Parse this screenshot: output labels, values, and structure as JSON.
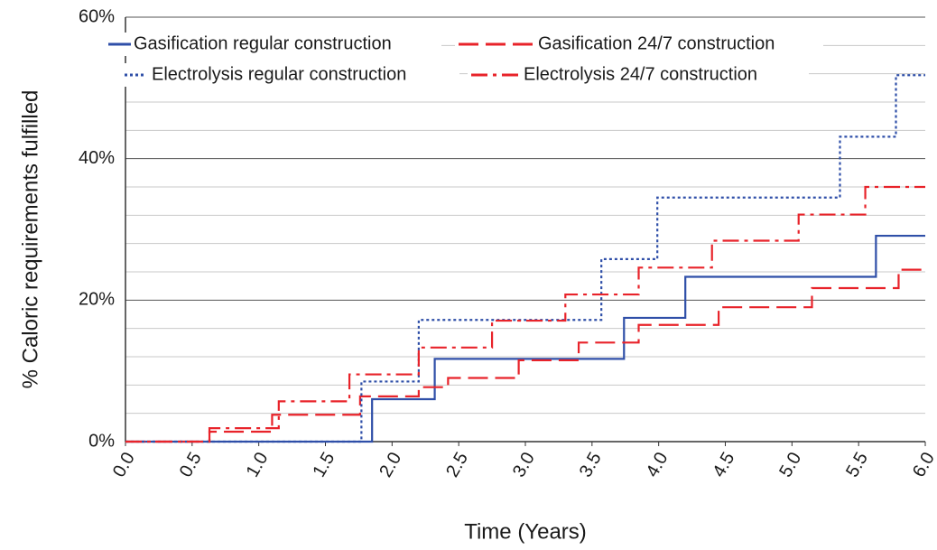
{
  "chart_data": {
    "type": "line",
    "x_label": "Time (Years)",
    "y_label": "% Caloric requirements fulfilled",
    "xlim": [
      0,
      6
    ],
    "ylim": [
      0,
      60
    ],
    "xticks": [
      {
        "value": 0,
        "label": "0.0"
      },
      0.5,
      {
        "value": 1,
        "label": "1.0"
      },
      1.5,
      {
        "value": 2,
        "label": "2.0"
      },
      2.5,
      {
        "value": 3,
        "label": "3.0"
      },
      3.5,
      {
        "value": 4,
        "label": "4.0"
      },
      4.5,
      {
        "value": 5,
        "label": "5.0"
      },
      5.5,
      {
        "value": 6,
        "label": "6.0"
      }
    ],
    "yticks": [
      {
        "value": 0,
        "label": "0%"
      },
      {
        "value": 20,
        "label": "20%"
      },
      {
        "value": 40,
        "label": "40%"
      },
      {
        "value": 60,
        "label": "60%"
      }
    ],
    "y_minor_gridlines": [
      4,
      8,
      12,
      16,
      24,
      28,
      32,
      36,
      44,
      48,
      52,
      56
    ],
    "grid": true,
    "legend": "top-left",
    "series": [
      {
        "name": "Gasification regular construction",
        "color": "#2f4fa8",
        "style": "solid",
        "x": [
          0,
          1.85,
          1.85,
          2.32,
          2.32,
          3.74,
          3.74,
          4.2,
          4.2,
          5.63,
          5.63,
          6
        ],
        "values": [
          0,
          0,
          6,
          6,
          11.7,
          11.7,
          17.5,
          17.5,
          23.3,
          23.3,
          29.1,
          29.1
        ]
      },
      {
        "name": "Gasification 24/7 construction",
        "color": "#e8232a",
        "style": "dashed",
        "x": [
          0,
          0.63,
          0.63,
          1.1,
          1.1,
          1.76,
          1.76,
          2.2,
          2.2,
          2.42,
          2.42,
          2.95,
          2.95,
          3.4,
          3.4,
          3.85,
          3.85,
          4.45,
          4.45,
          5.15,
          5.15,
          5.8,
          5.8,
          6
        ],
        "values": [
          0,
          0,
          1.4,
          1.4,
          3.8,
          3.8,
          6.4,
          6.4,
          7.7,
          7.7,
          9,
          9,
          11.5,
          11.5,
          14,
          14,
          16.5,
          16.5,
          19,
          19,
          21.7,
          21.7,
          24.3,
          24.3
        ]
      },
      {
        "name": "Electrolysis regular construction",
        "color": "#2f4fa8",
        "style": "dotted",
        "x": [
          0,
          1.77,
          1.77,
          2.2,
          2.2,
          3.57,
          3.57,
          3.99,
          3.99,
          5.36,
          5.36,
          5.78,
          5.78,
          6
        ],
        "values": [
          0,
          0,
          8.5,
          8.5,
          17.2,
          17.2,
          25.8,
          25.8,
          34.5,
          34.5,
          43.1,
          43.1,
          51.8,
          51.8
        ]
      },
      {
        "name": "Electrolysis 24/7 construction",
        "color": "#e8232a",
        "style": "dashdot",
        "x": [
          0,
          0.63,
          0.63,
          1.15,
          1.15,
          1.68,
          1.68,
          2.2,
          2.2,
          2.75,
          2.75,
          3.3,
          3.3,
          3.85,
          3.85,
          4.4,
          4.4,
          5.05,
          5.05,
          5.55,
          5.55,
          6
        ],
        "values": [
          0,
          0,
          1.9,
          1.9,
          5.7,
          5.7,
          9.5,
          9.5,
          13.3,
          13.3,
          17.1,
          17.1,
          20.8,
          20.8,
          24.6,
          24.6,
          28.4,
          28.4,
          32.1,
          32.1,
          36,
          36
        ]
      }
    ]
  }
}
